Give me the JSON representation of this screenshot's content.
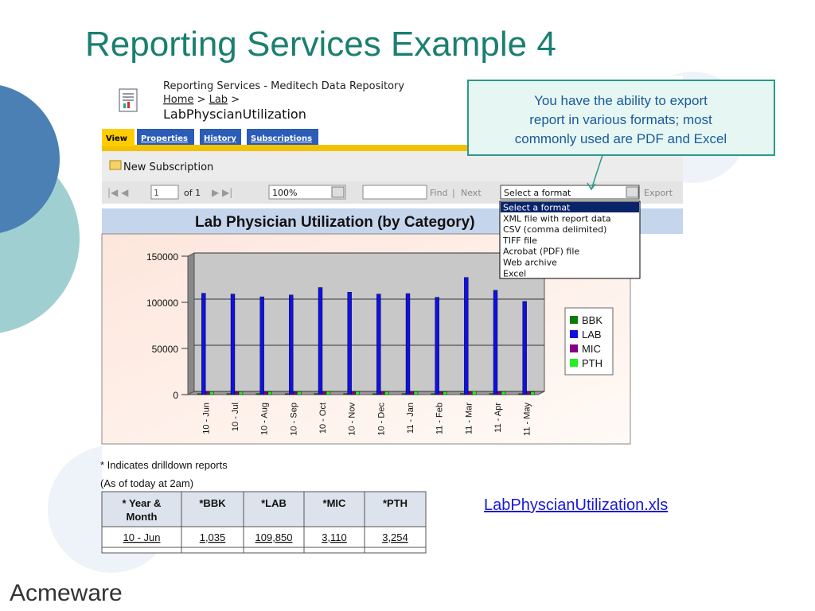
{
  "slide": {
    "title": "Reporting Services Example 4",
    "logo": "Acmeware"
  },
  "header": {
    "site": "Reporting Services - Meditech Data Repository",
    "breadcrumb": [
      "Home",
      ">",
      "Lab",
      ">"
    ],
    "report_name": "LabPhyscianUtilization"
  },
  "tabs": [
    "View",
    "Properties",
    "History",
    "Subscriptions"
  ],
  "toolbar": {
    "new_subscription": "New Subscription",
    "page": "1",
    "of_pages": "of 1",
    "zoom": "100%",
    "find": "Find",
    "separator": "|",
    "next": "Next",
    "format": "Select a format",
    "export": "Export"
  },
  "format_options": [
    "Select a format",
    "XML file with report data",
    "CSV (comma delimited)",
    "TIFF file",
    "Acrobat (PDF) file",
    "Web archive",
    "Excel"
  ],
  "callout": [
    "You have the ability to export",
    "report in various formats; most",
    "commonly used are PDF and Excel"
  ],
  "report_title": "Lab Physician Utilization (by Category)",
  "chart_data": {
    "type": "bar",
    "categories": [
      "10 - Jun",
      "10 - Jul",
      "10 - Aug",
      "10 - Sep",
      "10 - Oct",
      "10 - Nov",
      "10 - Dec",
      "11 - Jan",
      "11 - Feb",
      "11 - Mar",
      "11 - Apr",
      "11 - May"
    ],
    "series": [
      {
        "name": "BBK",
        "color": "#0a7a0a",
        "values": [
          1035,
          1100,
          1000,
          1050,
          1150,
          1080,
          1020,
          1060,
          990,
          1200,
          1100,
          980
        ]
      },
      {
        "name": "LAB",
        "color": "#1010e0",
        "values": [
          109850,
          109000,
          106000,
          108000,
          116000,
          111000,
          109000,
          109500,
          105500,
          127000,
          113000,
          101000
        ]
      },
      {
        "name": "MIC",
        "color": "#800080",
        "values": [
          3110,
          3000,
          2900,
          3000,
          3200,
          3100,
          3000,
          3050,
          2900,
          3300,
          3100,
          2800
        ]
      },
      {
        "name": "PTH",
        "color": "#22ee22",
        "values": [
          3254,
          3200,
          3100,
          3150,
          3350,
          3250,
          3150,
          3200,
          3050,
          3500,
          3300,
          3000
        ]
      }
    ],
    "ylim": [
      0,
      150000
    ],
    "yticks": [
      0,
      50000,
      100000,
      150000
    ],
    "grid": true,
    "legend": "right"
  },
  "notes": [
    "* Indicates drilldown reports",
    "(As of today at 2am)"
  ],
  "table": {
    "header": [
      [
        "* Year &",
        "Month"
      ],
      "*BBK",
      "*LAB",
      "*MIC",
      "*PTH"
    ],
    "rows": [
      [
        "10 - Jun",
        "1,035",
        "109,850",
        "3,110",
        "3,254"
      ]
    ]
  },
  "link": "LabPhyscianUtilization.xls"
}
